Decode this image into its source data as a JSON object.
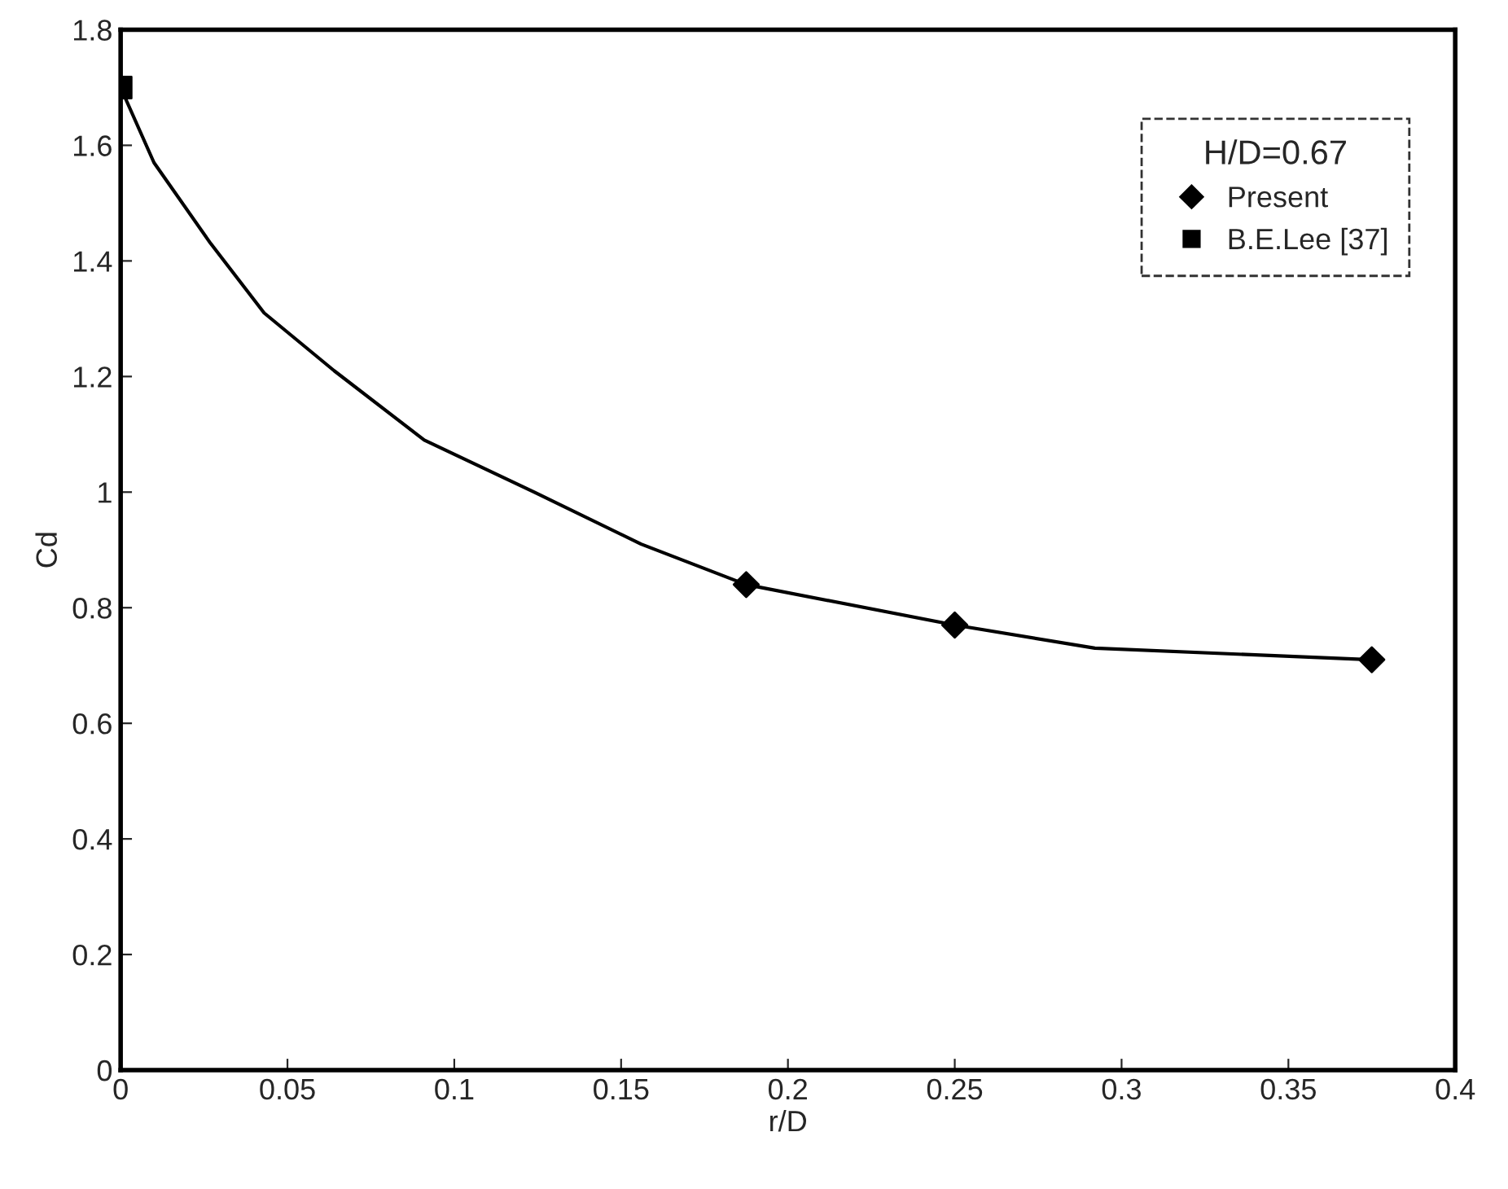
{
  "chart_data": {
    "type": "scatter",
    "xlabel": "r/D",
    "ylabel": "Cd",
    "legend_title": "H/D=0.67",
    "legend": "top right",
    "grid": false,
    "xlim": [
      0,
      0.4
    ],
    "xticks": [
      0,
      0.05,
      0.1,
      0.15,
      0.2,
      0.25,
      0.3,
      0.35,
      0.4
    ],
    "ylim": [
      0,
      1.8
    ],
    "yticks": [
      0,
      0.2,
      0.4,
      0.6,
      0.8,
      1,
      1.2,
      1.4,
      1.6,
      1.8
    ],
    "series": [
      {
        "type": "line",
        "color": "#000000",
        "marker": "none",
        "line_style": "solid",
        "x": [
          0,
          0.01,
          0.027,
          0.043,
          0.064,
          0.091,
          0.124,
          0.156,
          0.1875,
          0.25,
          0.292,
          0.375
        ],
        "values": [
          1.7,
          1.57,
          1.43,
          1.31,
          1.21,
          1.09,
          1.0,
          0.91,
          0.84,
          0.77,
          0.73,
          0.71
        ]
      },
      {
        "name": "Present",
        "color": "#000000",
        "marker": "diamond",
        "x": [
          0.1875,
          0.25,
          0.375
        ],
        "values": [
          0.84,
          0.77,
          0.71
        ]
      },
      {
        "name": "B.E.Lee [37]",
        "color": "#000000",
        "marker": "square",
        "x": [
          0
        ],
        "values": [
          1.7
        ]
      }
    ]
  }
}
